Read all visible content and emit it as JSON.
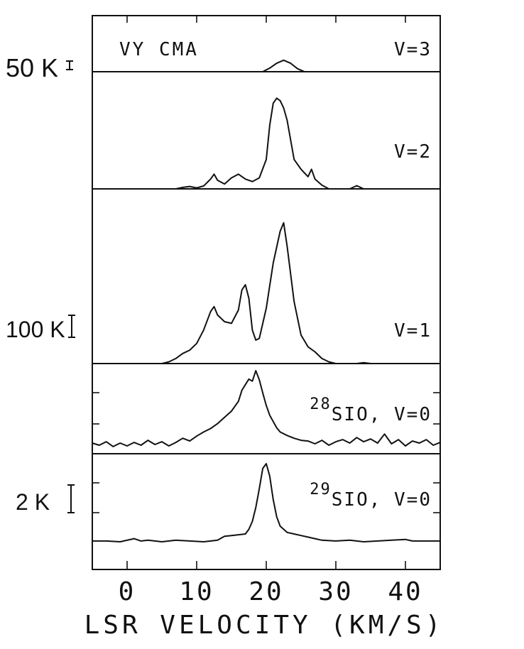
{
  "chart_data": {
    "type": "line",
    "xlabel": "LSR VELOCITY (KM/S)",
    "xlim": [
      -5,
      45
    ],
    "xticks": [
      0,
      10,
      20,
      30,
      40
    ],
    "xtick_labels": [
      "0",
      "10",
      "20",
      "30",
      "40"
    ],
    "source_label": "VY CMA",
    "panels": [
      {
        "key": "v3",
        "label": "V=3",
        "scale_label": "50 K",
        "series": [
          [
            -5,
            0
          ],
          [
            13,
            0
          ],
          [
            19.5,
            0
          ],
          [
            20.5,
            0.6
          ],
          [
            21.5,
            1.4
          ],
          [
            22.5,
            1.9
          ],
          [
            23.5,
            1.4
          ],
          [
            24.5,
            0.5
          ],
          [
            25.5,
            0
          ],
          [
            45,
            0
          ]
        ]
      },
      {
        "key": "v2",
        "label": "V=2",
        "scale_label": "",
        "series": [
          [
            -5,
            0
          ],
          [
            7,
            0
          ],
          [
            8,
            0.6
          ],
          [
            9,
            1.0
          ],
          [
            10,
            0.4
          ],
          [
            11,
            1.2
          ],
          [
            12,
            4.0
          ],
          [
            12.5,
            6.0
          ],
          [
            13,
            3.5
          ],
          [
            14,
            2.0
          ],
          [
            15,
            4.5
          ],
          [
            16,
            6.0
          ],
          [
            17,
            4.0
          ],
          [
            18,
            3.0
          ],
          [
            19,
            4.5
          ],
          [
            20,
            12
          ],
          [
            20.5,
            26
          ],
          [
            21,
            35
          ],
          [
            21.5,
            37
          ],
          [
            22,
            36
          ],
          [
            22.5,
            33
          ],
          [
            23,
            28
          ],
          [
            23.5,
            20
          ],
          [
            24,
            12
          ],
          [
            25,
            8
          ],
          [
            26,
            5
          ],
          [
            26.5,
            8
          ],
          [
            27,
            4
          ],
          [
            28,
            1.5
          ],
          [
            29,
            0
          ],
          [
            32,
            0
          ],
          [
            33,
            1.3
          ],
          [
            34,
            0
          ],
          [
            45,
            0
          ]
        ]
      },
      {
        "key": "v1",
        "label": "V=1",
        "scale_label": "100 K",
        "series": [
          [
            -5,
            0
          ],
          [
            5,
            0
          ],
          [
            6,
            2
          ],
          [
            7,
            6
          ],
          [
            8,
            12
          ],
          [
            9,
            16
          ],
          [
            10,
            24
          ],
          [
            11,
            40
          ],
          [
            12,
            62
          ],
          [
            12.5,
            68
          ],
          [
            13,
            58
          ],
          [
            14,
            50
          ],
          [
            15,
            48
          ],
          [
            16,
            64
          ],
          [
            16.5,
            88
          ],
          [
            17,
            94
          ],
          [
            17.5,
            78
          ],
          [
            18,
            40
          ],
          [
            18.5,
            28
          ],
          [
            19,
            30
          ],
          [
            20,
            66
          ],
          [
            21,
            120
          ],
          [
            22,
            158
          ],
          [
            22.5,
            168
          ],
          [
            23,
            140
          ],
          [
            24,
            74
          ],
          [
            25,
            34
          ],
          [
            26,
            20
          ],
          [
            27,
            14
          ],
          [
            28,
            6
          ],
          [
            29,
            2
          ],
          [
            30,
            0
          ],
          [
            33,
            0
          ],
          [
            34,
            1
          ],
          [
            35,
            0
          ],
          [
            45,
            0
          ]
        ]
      },
      {
        "key": "v0_28",
        "label": "SIO, V=0",
        "label_superscript": "28",
        "scale_label": "",
        "series": [
          [
            -5,
            0.2
          ],
          [
            -4,
            -0.1
          ],
          [
            -3,
            0.4
          ],
          [
            -2,
            -0.3
          ],
          [
            -1,
            0.2
          ],
          [
            0,
            -0.2
          ],
          [
            1,
            0.3
          ],
          [
            2,
            -0.1
          ],
          [
            3,
            0.6
          ],
          [
            4,
            0.0
          ],
          [
            5,
            0.4
          ],
          [
            6,
            -0.2
          ],
          [
            7,
            0.3
          ],
          [
            8,
            0.9
          ],
          [
            9,
            0.5
          ],
          [
            10,
            1.2
          ],
          [
            11,
            1.8
          ],
          [
            12,
            2.3
          ],
          [
            13,
            3.0
          ],
          [
            14,
            3.9
          ],
          [
            15,
            4.8
          ],
          [
            16,
            6.2
          ],
          [
            16.5,
            7.8
          ],
          [
            17,
            8.6
          ],
          [
            17.5,
            9.4
          ],
          [
            18,
            9.1
          ],
          [
            18.5,
            10.6
          ],
          [
            19,
            9.3
          ],
          [
            19.5,
            7.4
          ],
          [
            20,
            5.6
          ],
          [
            20.5,
            4.2
          ],
          [
            21,
            3.3
          ],
          [
            21.5,
            2.4
          ],
          [
            22,
            1.8
          ],
          [
            23,
            1.3
          ],
          [
            24,
            0.9
          ],
          [
            25,
            0.6
          ],
          [
            26,
            0.5
          ],
          [
            27,
            0.1
          ],
          [
            28,
            0.6
          ],
          [
            29,
            -0.1
          ],
          [
            30,
            0.4
          ],
          [
            31,
            0.7
          ],
          [
            32,
            0.2
          ],
          [
            33,
            1.0
          ],
          [
            34,
            0.4
          ],
          [
            35,
            0.8
          ],
          [
            36,
            0.2
          ],
          [
            37,
            1.5
          ],
          [
            38,
            0.1
          ],
          [
            39,
            0.7
          ],
          [
            40,
            -0.2
          ],
          [
            41,
            0.5
          ],
          [
            42,
            0.2
          ],
          [
            43,
            0.7
          ],
          [
            44,
            -0.1
          ],
          [
            45,
            0.3
          ]
        ]
      },
      {
        "key": "v0_29",
        "label": "SIO, V=0",
        "label_superscript": "29",
        "scale_label": "2 K",
        "series": [
          [
            -5,
            0.05
          ],
          [
            -3,
            0.05
          ],
          [
            -1,
            0.0
          ],
          [
            1,
            0.2
          ],
          [
            2,
            0.05
          ],
          [
            3,
            0.1
          ],
          [
            5,
            0.0
          ],
          [
            7,
            0.1
          ],
          [
            9,
            0.05
          ],
          [
            11,
            0.0
          ],
          [
            13,
            0.1
          ],
          [
            14,
            0.35
          ],
          [
            15,
            0.4
          ],
          [
            16,
            0.45
          ],
          [
            17,
            0.5
          ],
          [
            17.5,
            0.8
          ],
          [
            18,
            1.3
          ],
          [
            18.5,
            2.2
          ],
          [
            19,
            3.4
          ],
          [
            19.5,
            4.7
          ],
          [
            20,
            5.0
          ],
          [
            20.5,
            4.2
          ],
          [
            21,
            2.7
          ],
          [
            21.5,
            1.6
          ],
          [
            22,
            1.0
          ],
          [
            22.5,
            0.8
          ],
          [
            23,
            0.6
          ],
          [
            24,
            0.5
          ],
          [
            25,
            0.4
          ],
          [
            26,
            0.3
          ],
          [
            27,
            0.2
          ],
          [
            28,
            0.1
          ],
          [
            30,
            0.05
          ],
          [
            32,
            0.1
          ],
          [
            34,
            0.0
          ],
          [
            36,
            0.05
          ],
          [
            38,
            0.1
          ],
          [
            40,
            0.15
          ],
          [
            41,
            0.05
          ],
          [
            43,
            0.05
          ],
          [
            45,
            0.05
          ]
        ]
      }
    ]
  }
}
